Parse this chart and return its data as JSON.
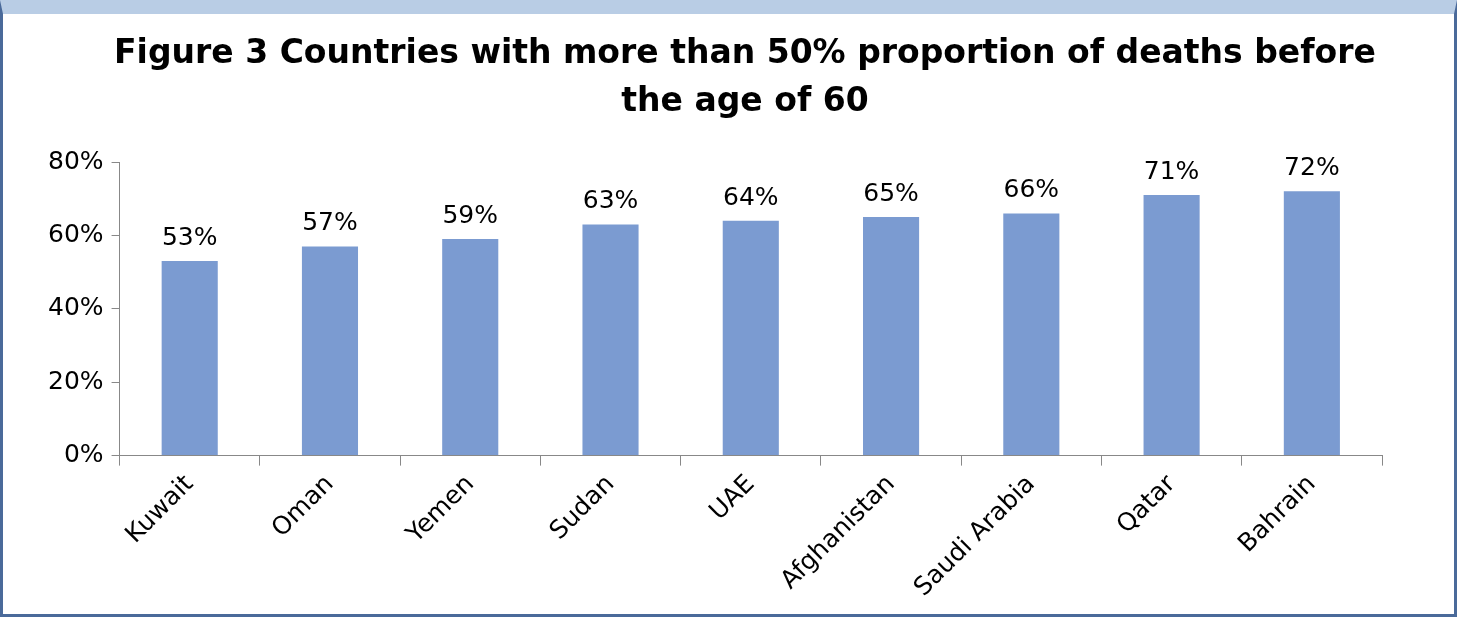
{
  "chart_data": {
    "type": "bar",
    "title": "Figure 3 Countries with more than 50% proportion of deaths before  the age of  60",
    "categories": [
      "Kuwait",
      "Oman",
      "Yemen",
      "Sudan",
      "UAE",
      "Afghanistan",
      "Saudi Arabia",
      "Qatar",
      "Bahrain"
    ],
    "values": [
      53,
      57,
      59,
      63,
      64,
      65,
      66,
      71,
      72
    ],
    "value_labels": [
      "53%",
      "57%",
      "59%",
      "63%",
      "64%",
      "65%",
      "66%",
      "71%",
      "72%"
    ],
    "color": "#7b9bd1",
    "ylim": [
      0,
      80
    ],
    "yticks": [
      {
        "value": 0,
        "label": "0%"
      },
      {
        "value": 20,
        "label": "20%"
      },
      {
        "value": 40,
        "label": "40%"
      },
      {
        "value": 60,
        "label": "60%"
      },
      {
        "value": 80,
        "label": "80%"
      }
    ],
    "grid": false,
    "legend": false
  }
}
